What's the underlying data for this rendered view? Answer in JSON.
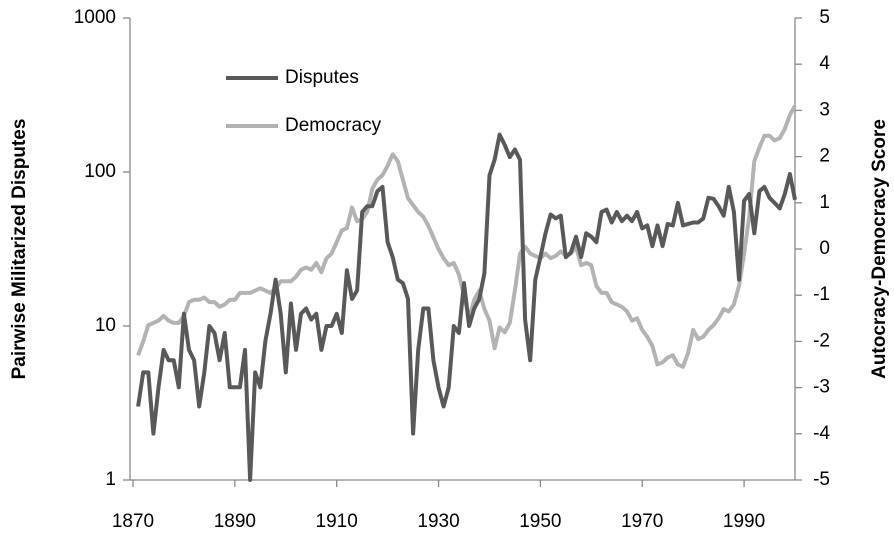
{
  "chart_data": {
    "type": "line",
    "y_label": "Pairwise Militarized Disputes",
    "y2_label": "Autocracy-Democracy Score",
    "x": [
      1871,
      1872,
      1873,
      1874,
      1875,
      1876,
      1877,
      1878,
      1879,
      1880,
      1881,
      1882,
      1883,
      1884,
      1885,
      1886,
      1887,
      1888,
      1889,
      1890,
      1891,
      1892,
      1893,
      1894,
      1895,
      1896,
      1897,
      1898,
      1899,
      1900,
      1901,
      1902,
      1903,
      1904,
      1905,
      1906,
      1907,
      1908,
      1909,
      1910,
      1911,
      1912,
      1913,
      1914,
      1915,
      1916,
      1917,
      1918,
      1919,
      1920,
      1921,
      1922,
      1923,
      1924,
      1925,
      1926,
      1927,
      1928,
      1929,
      1930,
      1931,
      1932,
      1933,
      1934,
      1935,
      1936,
      1937,
      1938,
      1939,
      1940,
      1941,
      1942,
      1943,
      1944,
      1945,
      1946,
      1947,
      1948,
      1949,
      1950,
      1951,
      1952,
      1953,
      1954,
      1955,
      1956,
      1957,
      1958,
      1959,
      1960,
      1961,
      1962,
      1963,
      1964,
      1965,
      1966,
      1967,
      1968,
      1969,
      1970,
      1971,
      1972,
      1973,
      1974,
      1975,
      1976,
      1977,
      1978,
      1979,
      1980,
      1981,
      1982,
      1983,
      1984,
      1985,
      1986,
      1987,
      1988,
      1989,
      1990,
      1991,
      1992,
      1993,
      1994,
      1995,
      1996,
      1997,
      1998,
      1999,
      2000
    ],
    "series": [
      {
        "name": "Disputes",
        "color": "#595959",
        "axis": "y",
        "values": [
          3,
          5,
          5,
          2,
          4,
          7,
          6,
          6,
          4,
          12,
          7,
          6,
          3,
          5,
          10,
          9,
          6,
          9,
          4,
          4,
          4,
          7,
          1,
          5,
          4,
          8,
          12,
          20,
          12,
          5,
          14,
          7,
          12,
          13,
          11,
          12,
          7,
          10,
          10,
          12,
          9,
          23,
          15,
          17,
          55,
          60,
          60,
          75,
          80,
          35,
          28,
          20,
          19,
          15,
          2,
          7,
          13,
          13,
          6,
          4,
          3,
          4,
          10,
          9,
          19,
          10,
          13,
          15,
          22,
          95,
          120,
          175,
          150,
          125,
          140,
          120,
          11,
          6,
          20,
          28,
          40,
          53,
          50,
          52,
          28,
          30,
          38,
          28,
          40,
          38,
          35,
          55,
          57,
          47,
          55,
          48,
          52,
          48,
          55,
          43,
          45,
          33,
          45,
          33,
          46,
          45,
          63,
          45,
          46,
          47,
          47,
          50,
          68,
          67,
          60,
          52,
          80,
          55,
          20,
          65,
          72,
          40,
          75,
          80,
          68,
          63,
          58,
          72,
          97,
          66
        ]
      },
      {
        "name": "Democracy",
        "color": "#b3b3b3",
        "axis": "y2",
        "values": [
          -2.3,
          -2.0,
          -1.65,
          -1.6,
          -1.55,
          -1.45,
          -1.55,
          -1.6,
          -1.6,
          -1.45,
          -1.15,
          -1.1,
          -1.1,
          -1.05,
          -1.15,
          -1.15,
          -1.25,
          -1.2,
          -1.1,
          -1.1,
          -0.95,
          -0.95,
          -0.95,
          -0.9,
          -0.85,
          -0.9,
          -0.95,
          -0.85,
          -0.7,
          -0.7,
          -0.7,
          -0.6,
          -0.45,
          -0.4,
          -0.45,
          -0.3,
          -0.5,
          -0.2,
          -0.1,
          0.15,
          0.4,
          0.45,
          0.9,
          0.6,
          0.65,
          0.8,
          1.3,
          1.5,
          1.6,
          1.8,
          2.05,
          1.9,
          1.5,
          1.1,
          0.95,
          0.8,
          0.7,
          0.5,
          0.25,
          0.0,
          -0.2,
          -0.35,
          -0.3,
          -0.55,
          -1.0,
          -1.5,
          -1.1,
          -0.9,
          -1.3,
          -1.55,
          -2.15,
          -1.7,
          -1.8,
          -1.6,
          -0.9,
          -0.1,
          0.05,
          -0.1,
          -0.15,
          -0.2,
          -0.1,
          -0.2,
          -0.15,
          -0.05,
          -0.15,
          -0.1,
          0.05,
          -0.35,
          -0.3,
          -0.35,
          -0.8,
          -0.95,
          -0.95,
          -1.15,
          -1.2,
          -1.25,
          -1.35,
          -1.55,
          -1.5,
          -1.75,
          -1.9,
          -2.1,
          -2.5,
          -2.45,
          -2.35,
          -2.3,
          -2.5,
          -2.55,
          -2.25,
          -1.75,
          -1.95,
          -1.9,
          -1.75,
          -1.65,
          -1.5,
          -1.3,
          -1.35,
          -1.2,
          -0.8,
          -0.1,
          0.7,
          1.9,
          2.2,
          2.45,
          2.45,
          2.35,
          2.4,
          2.6,
          2.9,
          3.1
        ]
      }
    ],
    "xlim": [
      1870,
      2000
    ],
    "xticks": [
      1870,
      1890,
      1910,
      1930,
      1950,
      1970,
      1990
    ],
    "ylim": [
      1,
      1000
    ],
    "yticks": [
      1,
      10,
      100,
      1000
    ],
    "ylog": true,
    "y2lim": [
      -5,
      5
    ],
    "y2ticks": [
      -5,
      -4,
      -3,
      -2,
      -1,
      0,
      1,
      2,
      3,
      4,
      5
    ],
    "legend": "upper left",
    "grid": false
  }
}
